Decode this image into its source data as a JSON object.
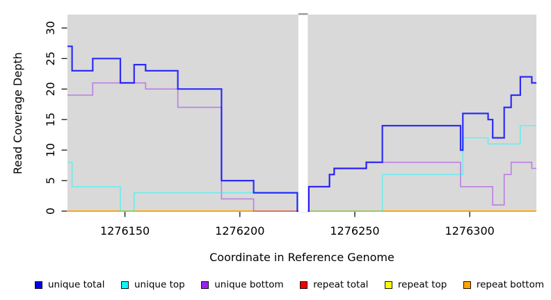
{
  "chart_data": {
    "type": "line",
    "subtype": "step",
    "title": "",
    "xlabel": "Coordinate in Reference Genome",
    "ylabel": "Read Coverage Depth",
    "x_domain": [
      1276125,
      1276329
    ],
    "y_domain": [
      0,
      32.2
    ],
    "x_ticks": [
      1276150,
      1276200,
      1276250,
      1276300
    ],
    "y_ticks": [
      0,
      5,
      10,
      15,
      20,
      25,
      30
    ],
    "grid": false,
    "plot_bg_color": "#d9d9d9",
    "gap_band": {
      "from": 1276225,
      "to": 1276230,
      "fill": "#ffffff",
      "top_dash_color": "#9a9a9a"
    },
    "legend_position": "bottom",
    "series": [
      {
        "name": "repeat total",
        "color": "#ee0000",
        "alpha": 1,
        "width": 1.6,
        "points": [
          [
            1276125,
            0
          ],
          [
            1276329,
            0
          ]
        ]
      },
      {
        "name": "repeat top",
        "color": "#ffff00",
        "alpha": 1,
        "width": 1.6,
        "points": [
          [
            1276125,
            0
          ],
          [
            1276329,
            0
          ]
        ]
      },
      {
        "name": "repeat bottom",
        "color": "#ffa500",
        "alpha": 1,
        "width": 1.7,
        "points": [
          [
            1276125,
            0
          ],
          [
            1276329,
            0
          ]
        ]
      },
      {
        "name": "unique bottom",
        "color": "#a020f0",
        "alpha": 0.5,
        "width": 1.6,
        "points": [
          [
            1276125,
            19
          ],
          [
            1276136,
            21
          ],
          [
            1276159,
            20
          ],
          [
            1276173,
            17
          ],
          [
            1276192,
            2
          ],
          [
            1276206,
            0
          ],
          [
            1276230,
            4
          ],
          [
            1276239,
            6
          ],
          [
            1276241,
            7
          ],
          [
            1276255,
            8
          ],
          [
            1276296,
            4
          ],
          [
            1276310,
            1
          ],
          [
            1276315,
            6
          ],
          [
            1276318,
            8
          ],
          [
            1276327,
            7
          ],
          [
            1276329,
            7
          ]
        ]
      },
      {
        "name": "unique top",
        "color": "#00ffff",
        "alpha": 0.5,
        "width": 1.6,
        "points": [
          [
            1276125,
            8
          ],
          [
            1276127,
            4
          ],
          [
            1276148,
            0
          ],
          [
            1276154,
            3
          ],
          [
            1276225,
            0
          ],
          [
            1276262,
            6
          ],
          [
            1276297,
            12
          ],
          [
            1276308,
            11
          ],
          [
            1276322,
            14
          ],
          [
            1276329,
            14
          ]
        ]
      },
      {
        "name": "unique total",
        "color": "#0000ff",
        "alpha": 0.8,
        "width": 2.2,
        "points": [
          [
            1276125,
            27
          ],
          [
            1276127,
            23
          ],
          [
            1276136,
            25
          ],
          [
            1276148,
            21
          ],
          [
            1276154,
            24
          ],
          [
            1276159,
            23
          ],
          [
            1276173,
            20
          ],
          [
            1276192,
            5
          ],
          [
            1276206,
            3
          ],
          [
            1276225,
            0
          ],
          [
            1276230,
            4
          ],
          [
            1276239,
            6
          ],
          [
            1276241,
            7
          ],
          [
            1276255,
            8
          ],
          [
            1276262,
            14
          ],
          [
            1276296,
            10
          ],
          [
            1276297,
            16
          ],
          [
            1276308,
            15
          ],
          [
            1276310,
            12
          ],
          [
            1276315,
            17
          ],
          [
            1276318,
            19
          ],
          [
            1276322,
            22
          ],
          [
            1276327,
            21
          ],
          [
            1276329,
            21
          ]
        ]
      }
    ],
    "legend": [
      {
        "label": "unique total",
        "color": "#0000f0"
      },
      {
        "label": "unique top",
        "color": "#00ffff"
      },
      {
        "label": "unique bottom",
        "color": "#a020f0"
      },
      {
        "label": "repeat total",
        "color": "#ee0000"
      },
      {
        "label": "repeat top",
        "color": "#ffff00"
      },
      {
        "label": "repeat bottom",
        "color": "#ffa500"
      }
    ]
  }
}
